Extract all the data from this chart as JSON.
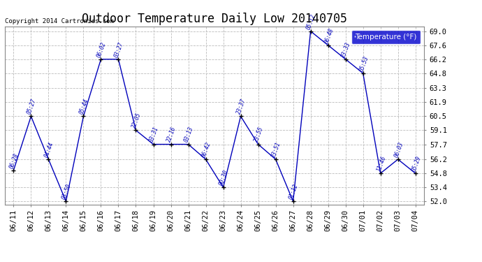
{
  "title": "Outdoor Temperature Daily Low 20140705",
  "copyright": "Copyright 2014 Cartronics.com",
  "legend_label": "Temperature (°F)",
  "x_labels": [
    "06/11",
    "06/12",
    "06/13",
    "06/14",
    "06/15",
    "06/16",
    "06/17",
    "06/18",
    "06/19",
    "06/20",
    "06/21",
    "06/22",
    "06/23",
    "06/24",
    "06/25",
    "06/26",
    "06/27",
    "06/28",
    "06/29",
    "06/30",
    "07/01",
    "07/02",
    "07/03",
    "07/04"
  ],
  "y_values": [
    55.1,
    60.5,
    56.2,
    52.0,
    60.5,
    66.2,
    66.2,
    59.1,
    57.7,
    57.7,
    57.7,
    56.2,
    53.4,
    60.5,
    57.7,
    56.2,
    52.0,
    69.0,
    67.6,
    66.2,
    64.8,
    54.8,
    56.2,
    54.8
  ],
  "time_labels": [
    "06:28",
    "05:27",
    "04:44",
    "03:50",
    "05:44",
    "06:02",
    "03:27",
    "22:05",
    "03:31",
    "22:16",
    "03:13",
    "06:42",
    "00:30",
    "23:37",
    "23:55",
    "23:51",
    "01:12",
    "05:12",
    "06:48",
    "23:33",
    "05:53",
    "11:46",
    "06:03",
    "05:29"
  ],
  "line_color": "#0000bb",
  "marker_color": "#000000",
  "bg_color": "#ffffff",
  "grid_color": "#bbbbbb",
  "ylim_min": 52.0,
  "ylim_max": 69.0,
  "yticks": [
    52.0,
    53.4,
    54.8,
    56.2,
    57.7,
    59.1,
    60.5,
    61.9,
    63.3,
    64.8,
    66.2,
    67.6,
    69.0
  ],
  "title_fontsize": 12,
  "label_fontsize": 7.5,
  "legend_bg": "#0000cc",
  "legend_text_color": "#ffffff"
}
